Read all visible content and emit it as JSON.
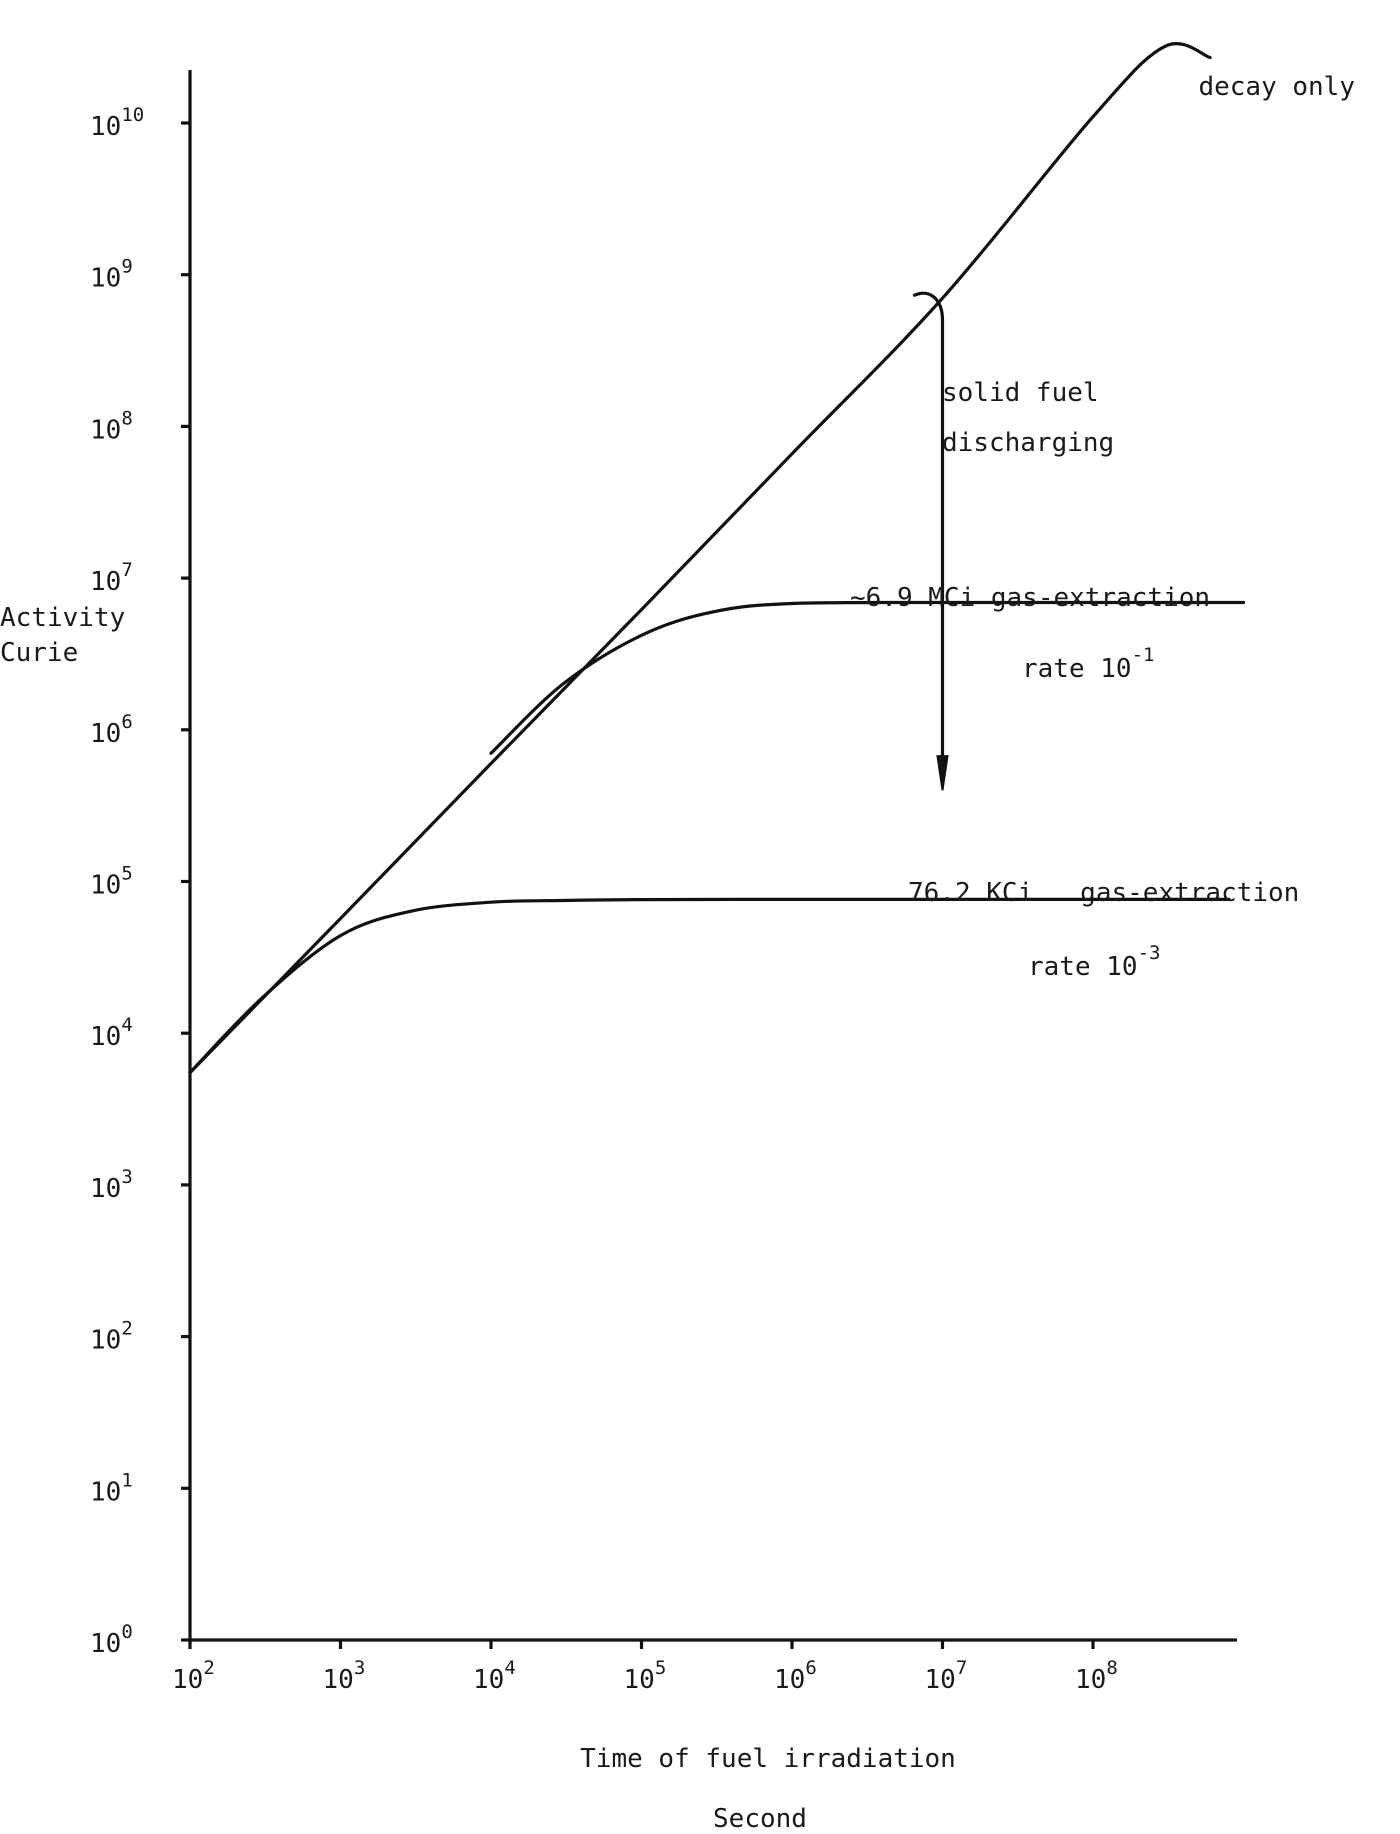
{
  "chart_data": {
    "type": "line",
    "title": "",
    "xlabel": "Time of fuel irradiation",
    "xlabel_unit": "Second",
    "ylabel": "Activity",
    "ylabel_unit": "Curie",
    "x_scale": "log",
    "y_scale": "log",
    "xlim": [
      100,
      1000000000
    ],
    "ylim": [
      1,
      10000000000
    ],
    "x_ticks": [
      {
        "base": "10",
        "exp": "2"
      },
      {
        "base": "10",
        "exp": "3"
      },
      {
        "base": "10",
        "exp": "4"
      },
      {
        "base": "10",
        "exp": "5"
      },
      {
        "base": "10",
        "exp": "6"
      },
      {
        "base": "10",
        "exp": "7"
      },
      {
        "base": "10",
        "exp": "8"
      }
    ],
    "y_ticks": [
      {
        "base": "10",
        "exp": "0"
      },
      {
        "base": "10",
        "exp": "1"
      },
      {
        "base": "10",
        "exp": "2"
      },
      {
        "base": "10",
        "exp": "3"
      },
      {
        "base": "10",
        "exp": "4"
      },
      {
        "base": "10",
        "exp": "5"
      },
      {
        "base": "10",
        "exp": "6"
      },
      {
        "base": "10",
        "exp": "7"
      },
      {
        "base": "10",
        "exp": "8"
      },
      {
        "base": "10",
        "exp": "9"
      },
      {
        "base": "10",
        "exp": "10"
      }
    ],
    "grid": false,
    "series": [
      {
        "name": "decay only",
        "x": [
          100,
          1000,
          10000,
          100000,
          1000000,
          10000000,
          100000000,
          300000000,
          600000000
        ],
        "y": [
          5500,
          57000,
          600000,
          6200000,
          66000000,
          700000000,
          11000000000,
          32000000000,
          27000000000
        ]
      },
      {
        "name": "",
        "x": [
          100,
          300,
          1000,
          3000,
          10000,
          30000,
          100000,
          1000000,
          10000000,
          100000000,
          800000000
        ],
        "y": [
          5500,
          17000,
          44000,
          64000,
          73000,
          75000,
          76000,
          76200,
          76200,
          76200,
          76200
        ]
      },
      {
        "name": "",
        "x": [
          10000,
          30000,
          100000,
          300000,
          1000000,
          10000000,
          100000000,
          1000000000
        ],
        "y": [
          700000,
          2000000,
          4200000,
          6000000,
          6800000,
          6900000,
          6900000,
          6900000
        ]
      }
    ],
    "annotations": [
      {
        "text": "decay only"
      },
      {
        "text": "solid fuel"
      },
      {
        "text": "discharging"
      },
      {
        "text": "~6.9 MCi gas-extraction"
      },
      {
        "text": "rate 10",
        "exp": "-1"
      },
      {
        "text": "76.2 KCi   gas-extraction"
      },
      {
        "text": "rate 10",
        "exp": "-3"
      }
    ],
    "arrow": {
      "x": 10000000,
      "y_from": 700000000,
      "y_to": 400000
    }
  }
}
